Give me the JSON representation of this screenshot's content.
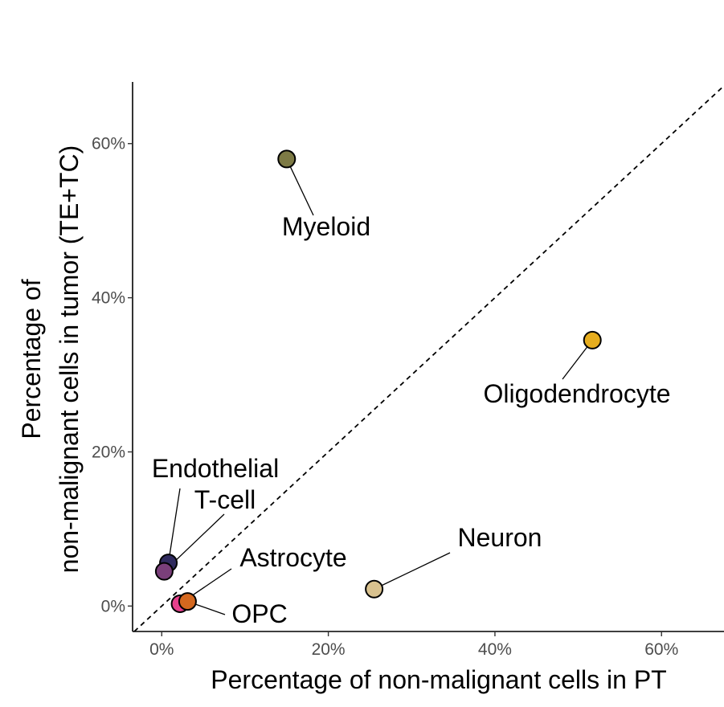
{
  "chart_data": {
    "type": "scatter",
    "title": "",
    "xlabel": "Percentage of non-malignant cells in PT",
    "ylabel_lines": [
      "Percentage of",
      "non-malignant cells in tumor (TE+TC)"
    ],
    "x_ticks": [
      0,
      20,
      40,
      60
    ],
    "x_tick_labels": [
      "0%",
      "20%",
      "40%",
      "60%"
    ],
    "y_ticks": [
      0,
      20,
      40,
      60
    ],
    "y_tick_labels": [
      "0%",
      "20%",
      "40%",
      "60%"
    ],
    "xlim": [
      -3.5,
      67.5
    ],
    "ylim": [
      -3.3,
      68
    ],
    "grid": false,
    "legend": "none",
    "reference_line": "identity (y = x), dashed",
    "points": [
      {
        "label": "Myeloid",
        "x": 15.0,
        "y": 58.0,
        "color": "#7d7a45"
      },
      {
        "label": "Oligodendrocyte",
        "x": 51.7,
        "y": 34.5,
        "color": "#e6ad1e"
      },
      {
        "label": "Neuron",
        "x": 25.5,
        "y": 2.2,
        "color": "#d9c28f"
      },
      {
        "label": "Endothelial",
        "x": 0.8,
        "y": 5.6,
        "color": "#2f2a5e"
      },
      {
        "label": "T-cell",
        "x": 0.3,
        "y": 4.5,
        "color": "#7a3f7a"
      },
      {
        "label": "Astrocyte",
        "x": 2.2,
        "y": 0.3,
        "color": "#e6408c"
      },
      {
        "label": "OPC",
        "x": 3.1,
        "y": 0.6,
        "color": "#d4681f"
      }
    ]
  }
}
